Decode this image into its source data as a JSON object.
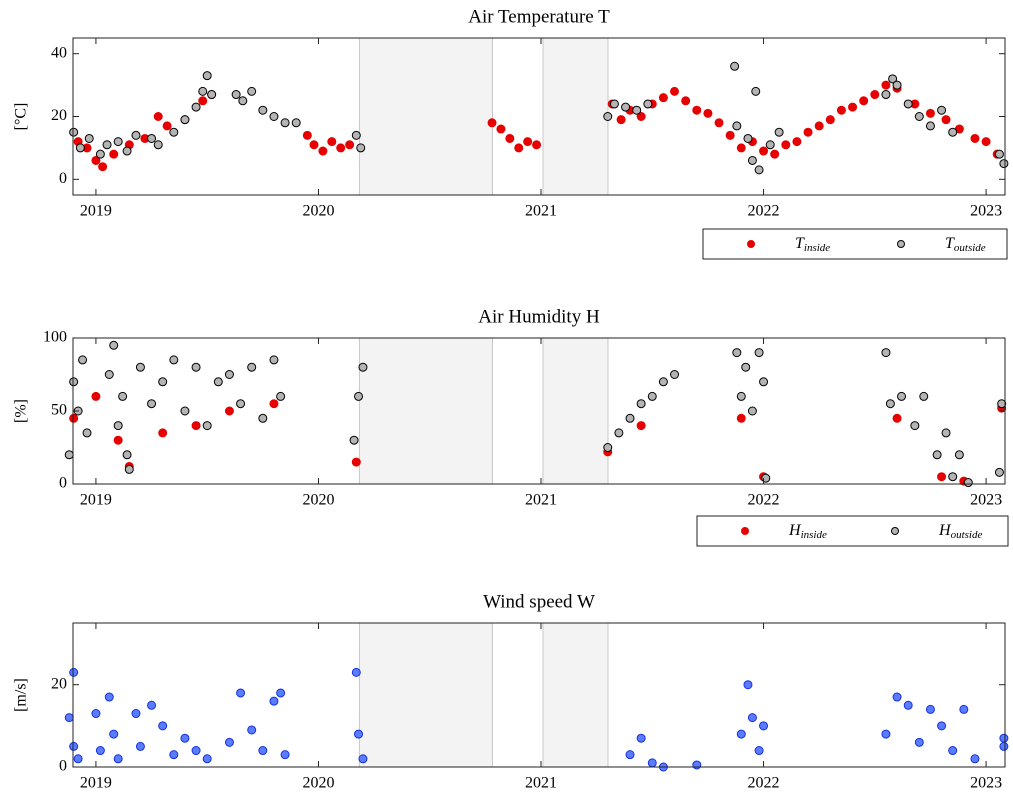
{
  "chart_data": [
    {
      "type": "scatter",
      "title": "Air Temperature T",
      "ylabel": "[°C]",
      "xlim": [
        2018.897,
        2023.085
      ],
      "xticks": [
        2019,
        2020,
        2021,
        2022,
        2023
      ],
      "ylim": [
        -5,
        45
      ],
      "yticks": [
        0,
        20,
        40
      ],
      "legend": "below",
      "shaded_spans": [
        [
          2020.184,
          2020.782
        ],
        [
          2021.009,
          2021.301
        ]
      ],
      "series": [
        {
          "name": "T",
          "subscript": "inside",
          "color": "#e60000",
          "edgecolor": "#e60000",
          "x": [
            2018.92,
            2018.96,
            2019.0,
            2019.03,
            2019.08,
            2019.15,
            2019.22,
            2019.28,
            2019.32,
            2019.4,
            2019.48,
            2019.52,
            2019.95,
            2019.98,
            2020.02,
            2020.06,
            2020.1,
            2020.14,
            2020.78,
            2020.82,
            2020.86,
            2020.9,
            2020.94,
            2020.98,
            2021.32,
            2021.36,
            2021.4,
            2021.45,
            2021.5,
            2021.55,
            2021.6,
            2021.65,
            2021.7,
            2021.75,
            2021.8,
            2021.85,
            2021.9,
            2021.95,
            2022.0,
            2022.05,
            2022.1,
            2022.15,
            2022.2,
            2022.25,
            2022.3,
            2022.35,
            2022.4,
            2022.45,
            2022.5,
            2022.55,
            2022.6,
            2022.68,
            2022.75,
            2022.82,
            2022.88,
            2022.95,
            2023.0,
            2023.05
          ],
          "values": [
            12,
            10,
            6,
            4,
            8,
            11,
            13,
            20,
            17,
            19,
            25,
            27,
            14,
            11,
            9,
            12,
            10,
            11,
            18,
            16,
            13,
            10,
            12,
            11,
            24,
            19,
            22,
            20,
            24,
            26,
            28,
            25,
            22,
            21,
            18,
            14,
            10,
            12,
            9,
            8,
            11,
            12,
            15,
            17,
            19,
            22,
            23,
            25,
            27,
            30,
            29,
            24,
            21,
            19,
            16,
            13,
            12,
            8
          ]
        },
        {
          "name": "T",
          "subscript": "outside",
          "color": "#b4b4b4",
          "edgecolor": "#000000",
          "x": [
            2018.9,
            2018.93,
            2018.97,
            2019.02,
            2019.05,
            2019.1,
            2019.14,
            2019.18,
            2019.25,
            2019.28,
            2019.35,
            2019.4,
            2019.45,
            2019.48,
            2019.5,
            2019.52,
            2019.63,
            2019.66,
            2019.7,
            2019.75,
            2019.8,
            2019.85,
            2019.9,
            2020.17,
            2020.19,
            2021.3,
            2021.33,
            2021.38,
            2021.43,
            2021.48,
            2021.87,
            2021.88,
            2021.93,
            2021.95,
            2021.965,
            2021.98,
            2022.03,
            2022.07,
            2022.55,
            2022.58,
            2022.6,
            2022.65,
            2022.7,
            2022.75,
            2022.8,
            2022.85,
            2023.06,
            2023.08
          ],
          "values": [
            15,
            10,
            13,
            8,
            11,
            12,
            9,
            14,
            13,
            11,
            15,
            19,
            23,
            28,
            33,
            27,
            27,
            25,
            28,
            22,
            20,
            18,
            18,
            14,
            10,
            20,
            24,
            23,
            22,
            24,
            36,
            17,
            13,
            6,
            28,
            3,
            11,
            15,
            27,
            32,
            30,
            24,
            20,
            17,
            22,
            15,
            8,
            5
          ]
        }
      ]
    },
    {
      "type": "scatter",
      "title": "Air Humidity H",
      "ylabel": "[%]",
      "xlim": [
        2018.897,
        2023.085
      ],
      "xticks": [
        2019,
        2020,
        2021,
        2022,
        2023
      ],
      "ylim": [
        0,
        100
      ],
      "yticks": [
        0,
        50,
        100
      ],
      "legend": "below",
      "shaded_spans": [
        [
          2020.184,
          2020.782
        ],
        [
          2021.009,
          2021.301
        ]
      ],
      "series": [
        {
          "name": "H",
          "subscript": "inside",
          "color": "#e60000",
          "edgecolor": "#e60000",
          "x": [
            2018.9,
            2019.0,
            2019.1,
            2019.15,
            2019.3,
            2019.45,
            2019.6,
            2019.8,
            2020.17,
            2021.3,
            2021.45,
            2021.9,
            2022.0,
            2022.6,
            2022.8,
            2022.9,
            2023.07
          ],
          "values": [
            45,
            60,
            30,
            12,
            35,
            40,
            50,
            55,
            15,
            22,
            40,
            45,
            5,
            45,
            5,
            2,
            52
          ]
        },
        {
          "name": "H",
          "subscript": "outside",
          "color": "#b4b4b4",
          "edgecolor": "#000000",
          "x": [
            2018.88,
            2018.9,
            2018.92,
            2018.94,
            2018.96,
            2019.06,
            2019.08,
            2019.1,
            2019.12,
            2019.14,
            2019.15,
            2019.2,
            2019.25,
            2019.3,
            2019.35,
            2019.4,
            2019.45,
            2019.5,
            2019.55,
            2019.6,
            2019.65,
            2019.7,
            2019.75,
            2019.8,
            2019.83,
            2020.16,
            2020.18,
            2020.2,
            2021.3,
            2021.35,
            2021.4,
            2021.45,
            2021.5,
            2021.55,
            2021.6,
            2021.88,
            2021.9,
            2021.92,
            2021.95,
            2021.98,
            2022.0,
            2022.01,
            2022.55,
            2022.57,
            2022.62,
            2022.68,
            2022.72,
            2022.78,
            2022.82,
            2022.85,
            2022.88,
            2022.92,
            2023.06,
            2023.07
          ],
          "values": [
            20,
            70,
            50,
            85,
            35,
            75,
            95,
            40,
            60,
            20,
            10,
            80,
            55,
            70,
            85,
            50,
            80,
            40,
            70,
            75,
            55,
            80,
            45,
            85,
            60,
            30,
            60,
            80,
            25,
            35,
            45,
            55,
            60,
            70,
            75,
            90,
            60,
            80,
            50,
            90,
            70,
            4,
            90,
            55,
            60,
            40,
            60,
            20,
            35,
            5,
            20,
            1,
            8,
            55
          ]
        }
      ]
    },
    {
      "type": "scatter",
      "title": "Wind speed W",
      "ylabel": "[m/s]",
      "xlim": [
        2018.897,
        2023.085
      ],
      "xticks": [
        2019,
        2020,
        2021,
        2022,
        2023
      ],
      "ylim": [
        0,
        35
      ],
      "yticks": [
        0,
        20
      ],
      "shaded_spans": [
        [
          2020.184,
          2020.782
        ],
        [
          2021.009,
          2021.301
        ]
      ],
      "series": [
        {
          "color": "#5a7cff",
          "edgecolor": "#1530e0",
          "x": [
            2018.88,
            2018.9,
            2018.9,
            2018.92,
            2019.0,
            2019.02,
            2019.06,
            2019.08,
            2019.1,
            2019.18,
            2019.2,
            2019.25,
            2019.3,
            2019.35,
            2019.4,
            2019.45,
            2019.5,
            2019.6,
            2019.65,
            2019.7,
            2019.75,
            2019.8,
            2019.83,
            2019.85,
            2020.17,
            2020.18,
            2020.2,
            2021.4,
            2021.45,
            2021.5,
            2021.55,
            2021.7,
            2021.9,
            2021.93,
            2021.95,
            2021.98,
            2022.0,
            2022.55,
            2022.6,
            2022.65,
            2022.7,
            2022.75,
            2022.8,
            2022.85,
            2022.9,
            2022.95,
            2023.08,
            2023.08
          ],
          "values": [
            12,
            23,
            5,
            2,
            13,
            4,
            17,
            8,
            2,
            13,
            5,
            15,
            10,
            3,
            7,
            4,
            2,
            6,
            18,
            9,
            4,
            16,
            18,
            3,
            23,
            8,
            2,
            3,
            7,
            1,
            0,
            0.5,
            8,
            20,
            12,
            4,
            10,
            8,
            17,
            15,
            6,
            14,
            10,
            4,
            14,
            2,
            7,
            5
          ]
        }
      ]
    }
  ]
}
